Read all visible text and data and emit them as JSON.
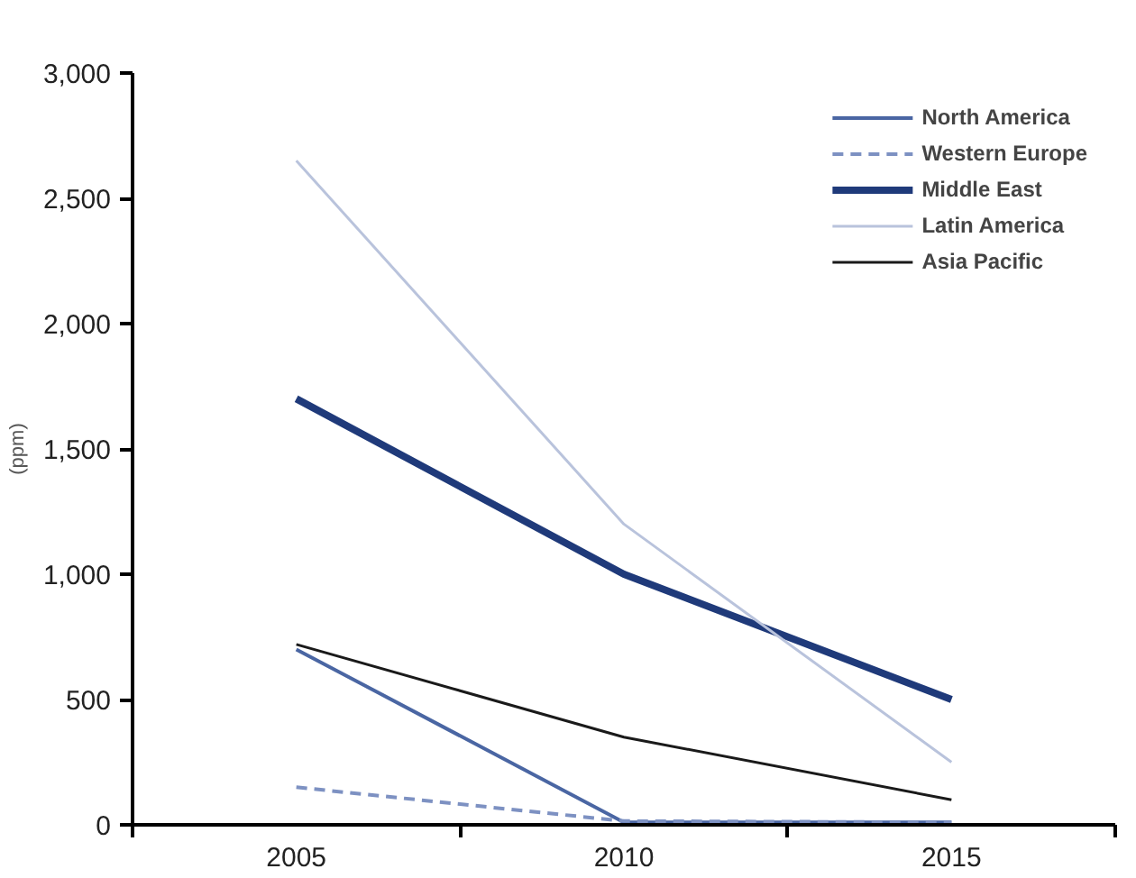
{
  "chart_data": {
    "type": "line",
    "ylabel": "(ppm)",
    "categories": [
      "2005",
      "2010",
      "2015"
    ],
    "ylim": [
      0,
      3000
    ],
    "yticks": [
      0,
      {
        "value": 500,
        "label": "500"
      },
      {
        "value": 1000,
        "label": "1,000"
      },
      {
        "value": 1500,
        "label": "1,500"
      },
      {
        "value": 2000,
        "label": "2,000"
      },
      {
        "value": 2500,
        "label": "2,500"
      },
      {
        "value": 3000,
        "label": "3,000"
      }
    ],
    "grid": false,
    "legend": "top right",
    "marker": "none",
    "series": [
      {
        "name": "North America",
        "color": "#4a66a3",
        "values": [
          700,
          10,
          10
        ]
      },
      {
        "name": "Western Europe",
        "color": "#7d91c2",
        "values": [
          150,
          15,
          10
        ],
        "line_style": "dashed"
      },
      {
        "name": "Middle East",
        "color": "#1f3a7a",
        "values": [
          1700,
          1000,
          500
        ]
      },
      {
        "name": "Latin America",
        "color": "#b9c3dc",
        "values": [
          2650,
          1200,
          250
        ]
      },
      {
        "name": "Asia Pacific",
        "color": "#1a1a1a",
        "values": [
          720,
          350,
          100
        ]
      }
    ]
  }
}
